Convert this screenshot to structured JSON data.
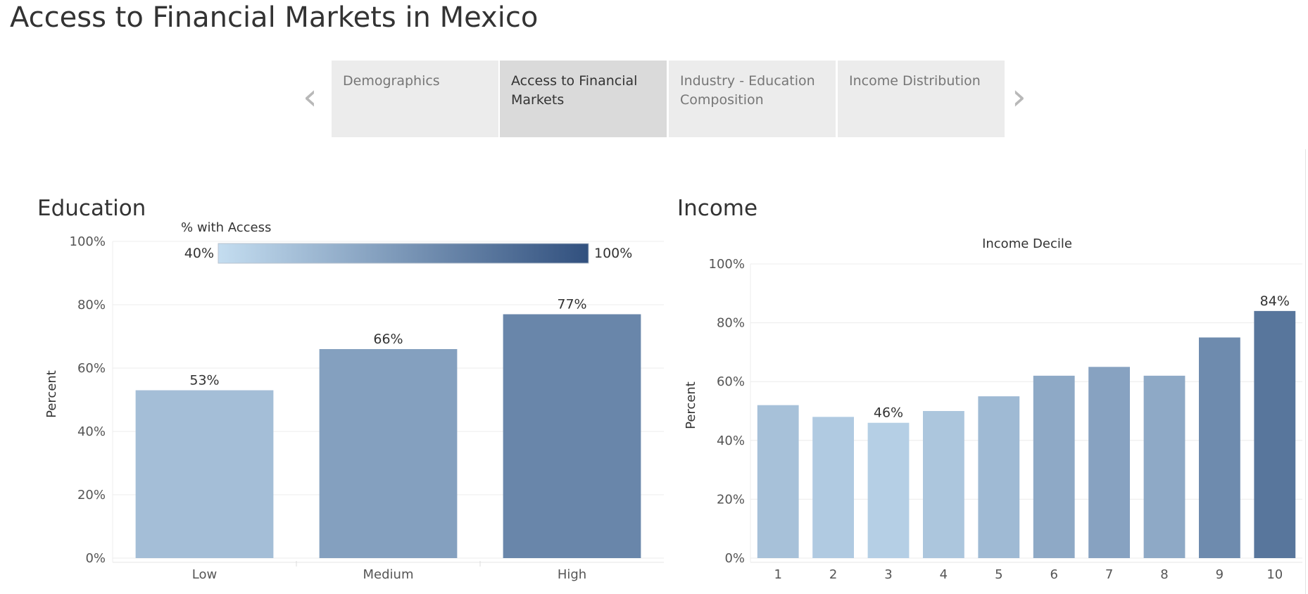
{
  "page": {
    "title": "Access to Financial Markets in Mexico"
  },
  "story": {
    "prev_arrow": "‹",
    "next_arrow": "›",
    "tabs": [
      {
        "label": "Demographics",
        "active": false
      },
      {
        "label": "Access to Financial Markets",
        "active": true
      },
      {
        "label": "Industry - Education Composition",
        "active": false
      },
      {
        "label": "Income Distribution",
        "active": false
      }
    ]
  },
  "legend": {
    "title": "% with Access",
    "min_label": "40%",
    "max_label": "100%",
    "min_value": 0.4,
    "max_value": 1.0,
    "color_light": "#c4ddf0",
    "color_dark": "#31507e"
  },
  "chart_data": [
    {
      "type": "bar",
      "title": "Education",
      "xlabel": "",
      "ylabel": "Percent",
      "ylim": [
        0,
        100
      ],
      "yticks": [
        "0%",
        "20%",
        "40%",
        "60%",
        "80%",
        "100%"
      ],
      "categories": [
        "Low",
        "Medium",
        "High"
      ],
      "values": [
        53,
        66,
        77
      ],
      "data_labels": [
        "53%",
        "66%",
        "77%"
      ],
      "grid": true
    },
    {
      "type": "bar",
      "title": "Income",
      "header": "Income Decile",
      "xlabel": "",
      "ylabel": "Percent",
      "ylim": [
        0,
        100
      ],
      "yticks": [
        "0%",
        "20%",
        "40%",
        "60%",
        "80%",
        "100%"
      ],
      "categories": [
        "1",
        "2",
        "3",
        "4",
        "5",
        "6",
        "7",
        "8",
        "9",
        "10"
      ],
      "values": [
        52,
        48,
        46,
        50,
        55,
        62,
        65,
        62,
        75,
        84
      ],
      "data_labels": [
        "",
        "",
        "46%",
        "",
        "",
        "",
        "",
        "",
        "",
        "84%"
      ],
      "grid": true
    }
  ]
}
